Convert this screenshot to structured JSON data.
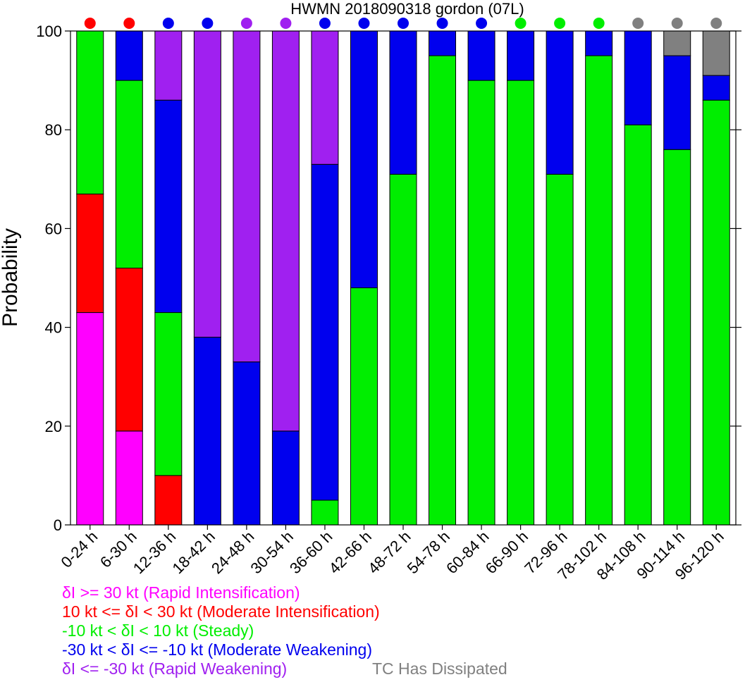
{
  "chart_data": {
    "type": "bar",
    "stacked": true,
    "title": "HWMN 2018090318 gordon (07L)",
    "xlabel": "",
    "ylabel": "Probability",
    "ylim": [
      0,
      100
    ],
    "yticks": [
      0,
      20,
      40,
      60,
      80,
      100
    ],
    "grid": false,
    "legend_placement": "bottom-left",
    "categories": [
      "0-24 h",
      "6-30 h",
      "12-36 h",
      "18-42 h",
      "24-48 h",
      "30-54 h",
      "36-60 h",
      "42-66 h",
      "48-72 h",
      "54-78 h",
      "60-84 h",
      "66-90 h",
      "72-96 h",
      "78-102 h",
      "84-108 h",
      "90-114 h",
      "96-120 h"
    ],
    "series": [
      {
        "key": "ri",
        "color": "#ff00ff",
        "values": [
          43,
          19,
          0,
          0,
          0,
          0,
          0,
          0,
          0,
          0,
          0,
          0,
          0,
          0,
          0,
          0,
          0
        ]
      },
      {
        "key": "mi",
        "color": "#ff0000",
        "values": [
          24,
          33,
          10,
          0,
          0,
          0,
          0,
          0,
          0,
          0,
          0,
          0,
          0,
          0,
          0,
          0,
          0
        ]
      },
      {
        "key": "st",
        "color": "#00ee00",
        "values": [
          33,
          38,
          33,
          0,
          0,
          0,
          5,
          48,
          71,
          95,
          90,
          90,
          71,
          95,
          81,
          76,
          86
        ]
      },
      {
        "key": "mw",
        "color": "#0000ee",
        "values": [
          0,
          10,
          43,
          38,
          33,
          19,
          68,
          52,
          29,
          5,
          10,
          10,
          29,
          5,
          19,
          19,
          5
        ]
      },
      {
        "key": "rw",
        "color": "#a020f0",
        "values": [
          0,
          0,
          14,
          62,
          67,
          81,
          27,
          0,
          0,
          0,
          0,
          0,
          0,
          0,
          0,
          0,
          0
        ]
      },
      {
        "key": "td",
        "color": "#808080",
        "values": [
          0,
          0,
          0,
          0,
          0,
          0,
          0,
          0,
          0,
          0,
          0,
          0,
          0,
          0,
          0,
          5,
          9
        ]
      }
    ],
    "most_likely_color": [
      "#ff0000",
      "#ff0000",
      "#0000ee",
      "#0000ee",
      "#a020f0",
      "#a020f0",
      "#0000ee",
      "#0000ee",
      "#0000ee",
      "#0000ee",
      "#0000ee",
      "#00ee00",
      "#00ee00",
      "#00ee00",
      "#808080",
      "#808080",
      "#808080"
    ],
    "legend": [
      {
        "key": "ri",
        "color": "#ff00ff",
        "label": "δI >= 30 kt (Rapid Intensification)"
      },
      {
        "key": "mi",
        "color": "#ff0000",
        "label": "10 kt <= δI < 30 kt (Moderate Intensification)"
      },
      {
        "key": "st",
        "color": "#00ee00",
        "label": "-10 kt < δI < 10 kt (Steady)"
      },
      {
        "key": "mw",
        "color": "#0000ee",
        "label": "-30 kt < δI <= -10 kt (Moderate Weakening)"
      },
      {
        "key": "rw",
        "color": "#a020f0",
        "label": "δI <= -30 kt (Rapid Weakening)"
      },
      {
        "key": "td",
        "color": "#808080",
        "label": "TC Has Dissipated"
      }
    ]
  }
}
